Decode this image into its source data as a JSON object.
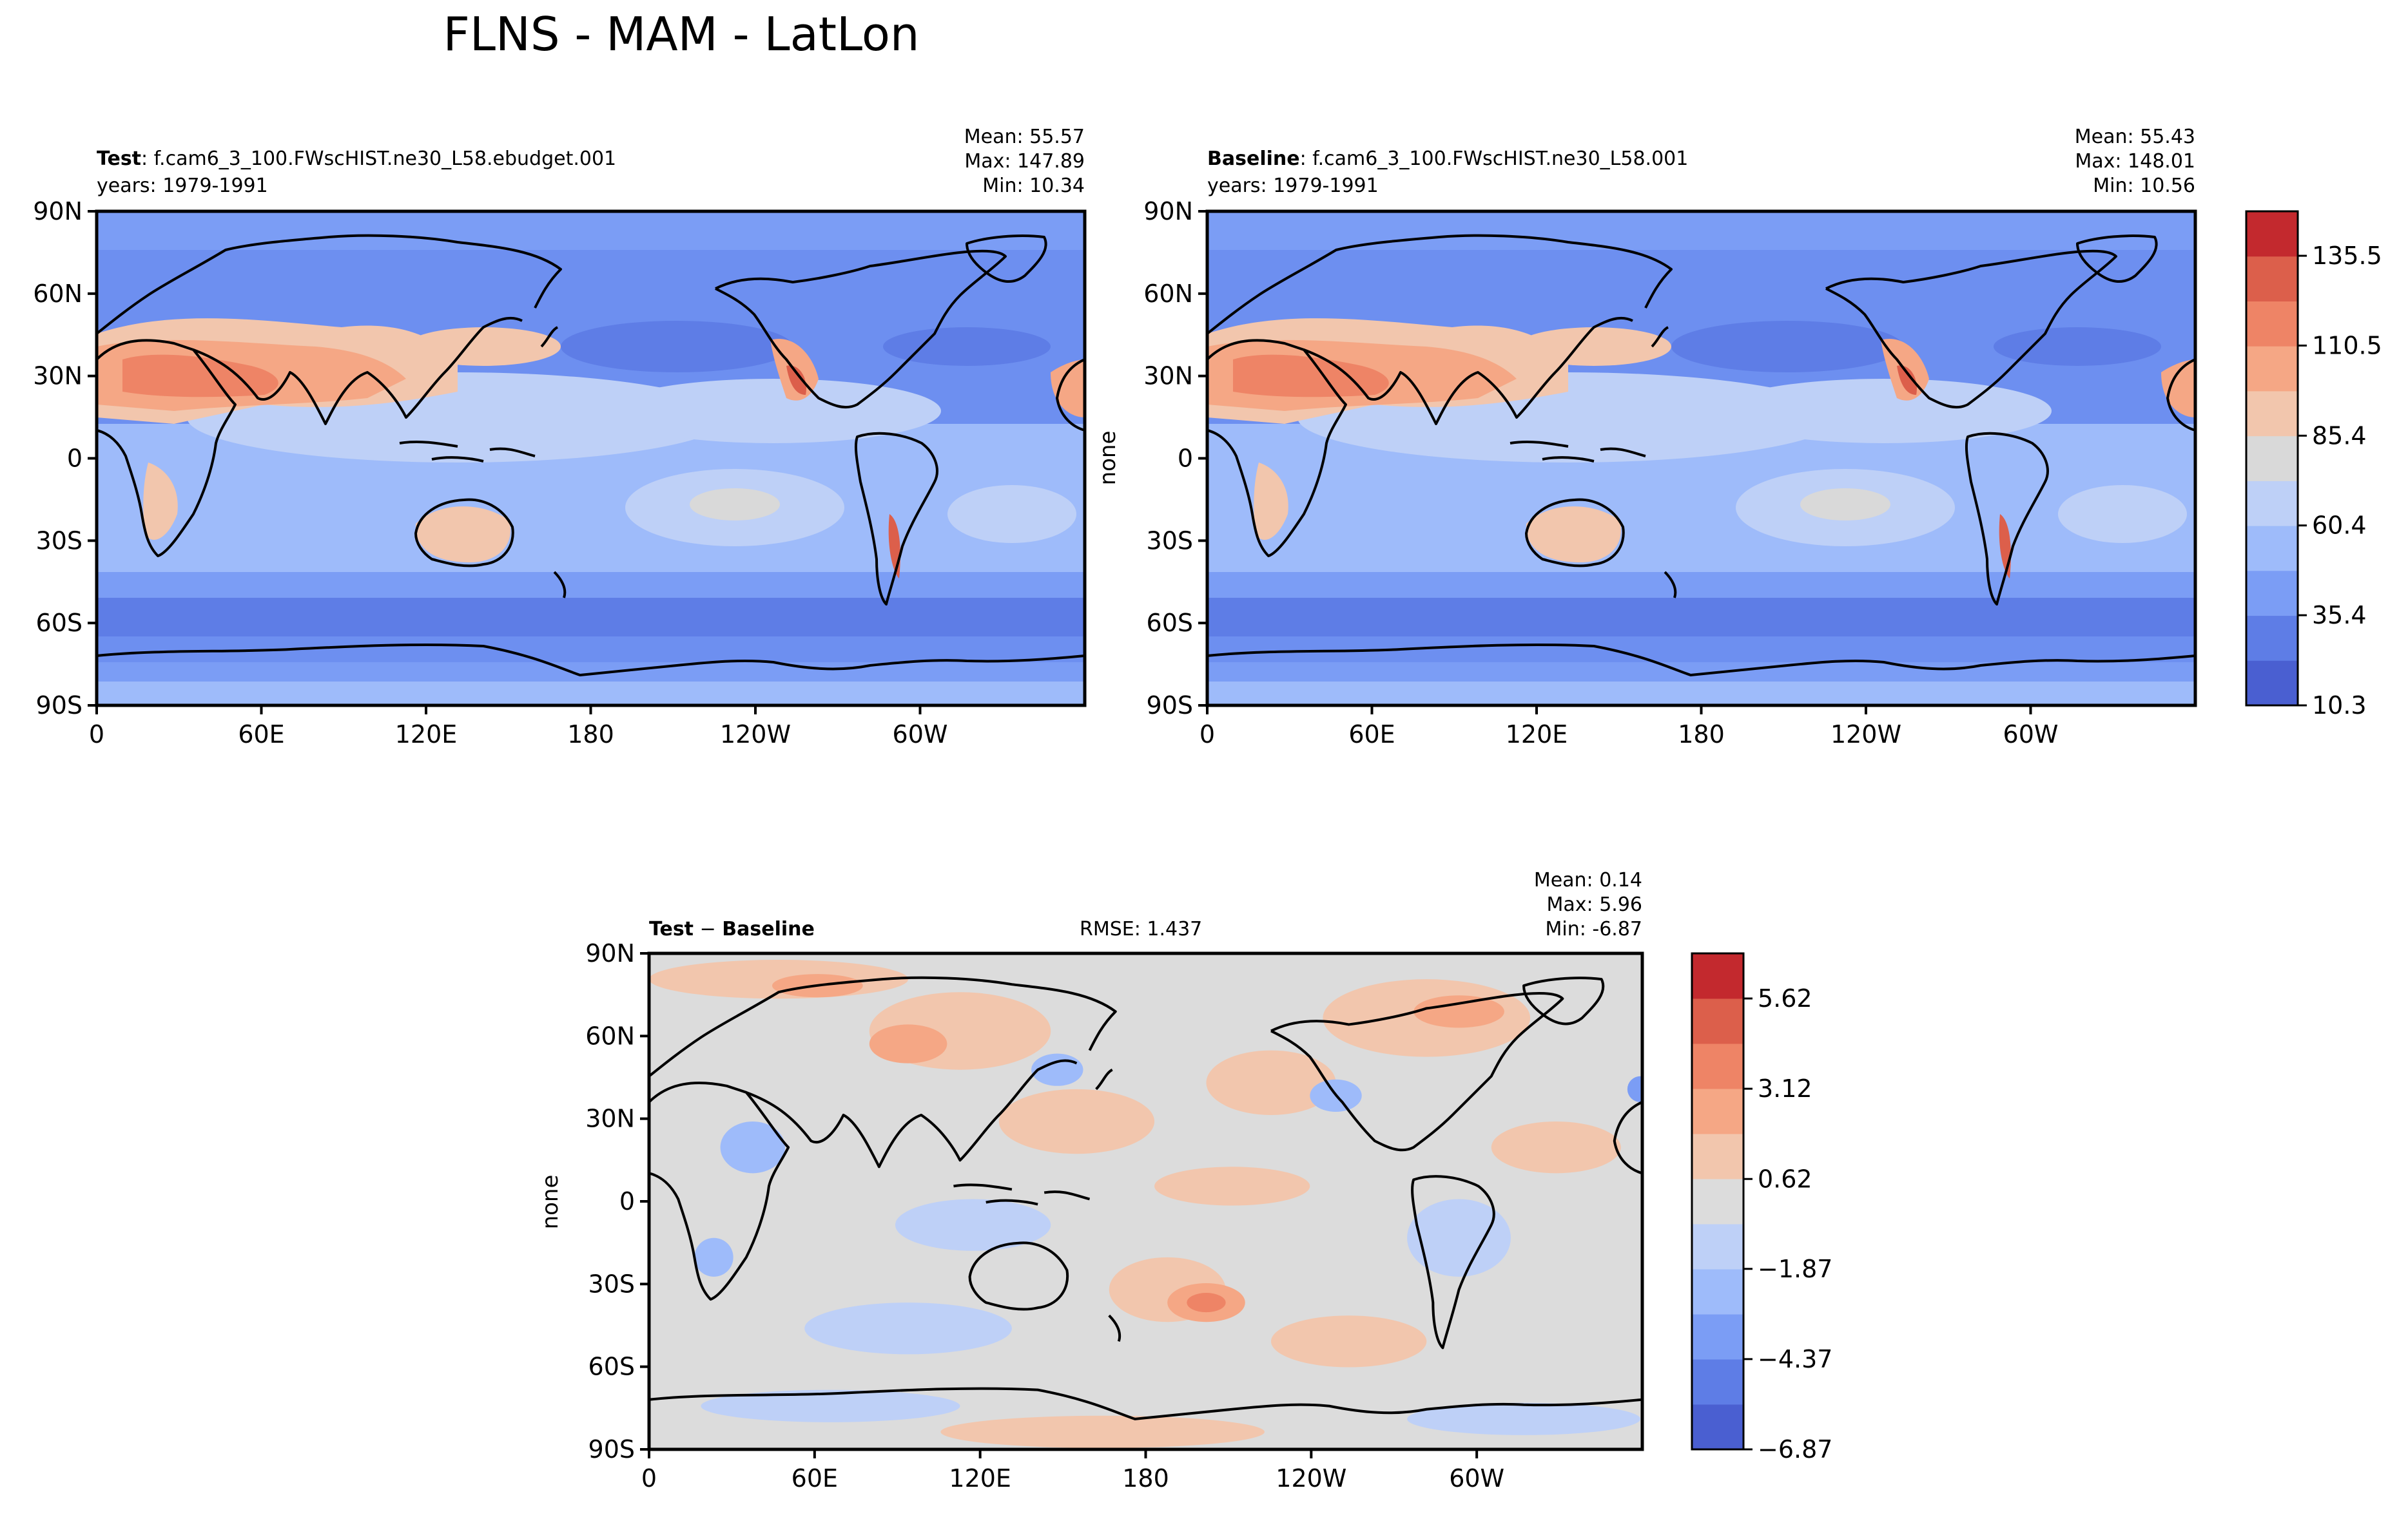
{
  "title": "FLNS - MAM - LatLon",
  "colors": {
    "ocean_base": "#6d8ff0",
    "coast": "#000000",
    "main_levels": [
      "#4a5fd1",
      "#5e7de6",
      "#7b9df5",
      "#9ebbfa",
      "#bed0f7",
      "#d9d9d9",
      "#f2c6ad",
      "#f5a785",
      "#ee8466",
      "#dc5f4b",
      "#c3292e"
    ],
    "diff_levels": [
      "#4a5fd1",
      "#5e7de6",
      "#7b9df5",
      "#9ebbfa",
      "#bed0f7",
      "#dcdcdc",
      "#f2c6ad",
      "#f5a785",
      "#ee8466",
      "#dc5f4b",
      "#c3292e"
    ]
  },
  "chart_data": [
    {
      "type": "heatmap",
      "panel": "test",
      "label_bold": "Test",
      "label_rest": ": f.cam6_3_100.FWscHIST.ne30_L58.ebudget.001",
      "years": "years: 1979-1991",
      "stats": {
        "mean": "Mean: 55.57",
        "max": "Max: 147.89",
        "min": "Min: 10.34"
      },
      "ylabel": "",
      "xticks": [
        "0",
        "60E",
        "120E",
        "180",
        "120W",
        "60W"
      ],
      "yticks": [
        "90N",
        "60N",
        "30N",
        "0",
        "30S",
        "60S",
        "90S"
      ],
      "xlim": [
        0,
        360
      ],
      "ylim": [
        -90,
        90
      ]
    },
    {
      "type": "heatmap",
      "panel": "baseline",
      "label_bold": "Baseline",
      "label_rest": ": f.cam6_3_100.FWscHIST.ne30_L58.001",
      "years": "years: 1979-1991",
      "stats": {
        "mean": "Mean: 55.43",
        "max": "Max: 148.01",
        "min": "Min: 10.56"
      },
      "ylabel": "none",
      "xticks": [
        "0",
        "60E",
        "120E",
        "180",
        "120W",
        "60W"
      ],
      "yticks": [
        "90N",
        "60N",
        "30N",
        "0",
        "30S",
        "60S",
        "90S"
      ],
      "xlim": [
        0,
        360
      ],
      "ylim": [
        -90,
        90
      ]
    },
    {
      "type": "heatmap",
      "panel": "difference",
      "label_bold1": "Test",
      "label_minus": " − ",
      "label_bold2": "Baseline",
      "rmse": "RMSE: 1.437",
      "stats": {
        "mean": "Mean:  0.14",
        "max": "Max:  5.96",
        "min": "Min: -6.87"
      },
      "ylabel": "none",
      "xticks": [
        "0",
        "60E",
        "120E",
        "180",
        "120W",
        "60W"
      ],
      "yticks": [
        "90N",
        "60N",
        "30N",
        "0",
        "30S",
        "60S",
        "90S"
      ],
      "xlim": [
        0,
        360
      ],
      "ylim": [
        -90,
        90
      ]
    }
  ],
  "colorbars": {
    "main": {
      "ticks": [
        "10.3",
        "35.4",
        "60.4",
        "85.4",
        "110.5",
        "135.5"
      ],
      "tick_values": [
        10.3,
        35.4,
        60.4,
        85.4,
        110.5,
        135.5
      ],
      "vmin": 10.3,
      "vmax": 147.89
    },
    "diff": {
      "ticks": [
        "−6.87",
        "−4.37",
        "−1.87",
        "0.62",
        "3.12",
        "5.62"
      ],
      "tick_values": [
        -6.87,
        -4.37,
        -1.87,
        0.62,
        3.12,
        5.62
      ],
      "vmin": -6.87,
      "vmax": 6.87
    }
  }
}
